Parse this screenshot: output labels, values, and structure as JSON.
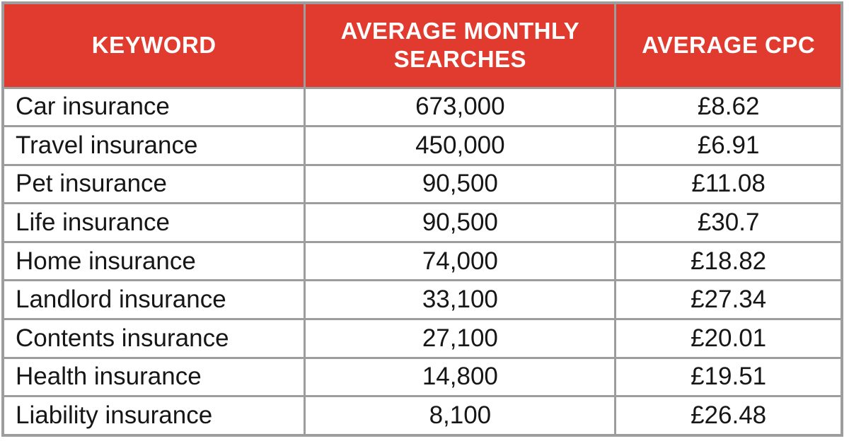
{
  "table": {
    "columns": [
      {
        "label": "KEYWORD"
      },
      {
        "label": "AVERAGE MONTHLY SEARCHES"
      },
      {
        "label": "AVERAGE CPC"
      }
    ],
    "rows": [
      {
        "keyword": "Car insurance",
        "searches": "673,000",
        "cpc": "£8.62"
      },
      {
        "keyword": "Travel insurance",
        "searches": "450,000",
        "cpc": "£6.91"
      },
      {
        "keyword": "Pet insurance",
        "searches": "90,500",
        "cpc": "£11.08"
      },
      {
        "keyword": "Life insurance",
        "searches": "90,500",
        "cpc": "£30.7"
      },
      {
        "keyword": "Home insurance",
        "searches": "74,000",
        "cpc": "£18.82"
      },
      {
        "keyword": "Landlord insurance",
        "searches": "33,100",
        "cpc": "£27.34"
      },
      {
        "keyword": "Contents insurance",
        "searches": "27,100",
        "cpc": "£20.01"
      },
      {
        "keyword": "Health insurance",
        "searches": "14,800",
        "cpc": "£19.51"
      },
      {
        "keyword": "Liability insurance",
        "searches": "8,100",
        "cpc": "£26.48"
      }
    ]
  },
  "colors": {
    "header_bg": "#e13a2e",
    "header_text": "#ffffff",
    "border": "#9d9d9d",
    "row_bg": "#ffffff",
    "text": "#161616"
  },
  "chart_data": {
    "type": "table",
    "title": "",
    "columns": [
      "KEYWORD",
      "AVERAGE MONTHLY SEARCHES",
      "AVERAGE CPC"
    ],
    "currency": "GBP",
    "rows": [
      [
        "Car insurance",
        673000,
        8.62
      ],
      [
        "Travel insurance",
        450000,
        6.91
      ],
      [
        "Pet insurance",
        90500,
        11.08
      ],
      [
        "Life insurance",
        90500,
        30.7
      ],
      [
        "Home insurance",
        74000,
        18.82
      ],
      [
        "Landlord insurance",
        33100,
        27.34
      ],
      [
        "Contents insurance",
        27100,
        20.01
      ],
      [
        "Health insurance",
        14800,
        19.51
      ],
      [
        "Liability insurance",
        8100,
        26.48
      ]
    ]
  }
}
